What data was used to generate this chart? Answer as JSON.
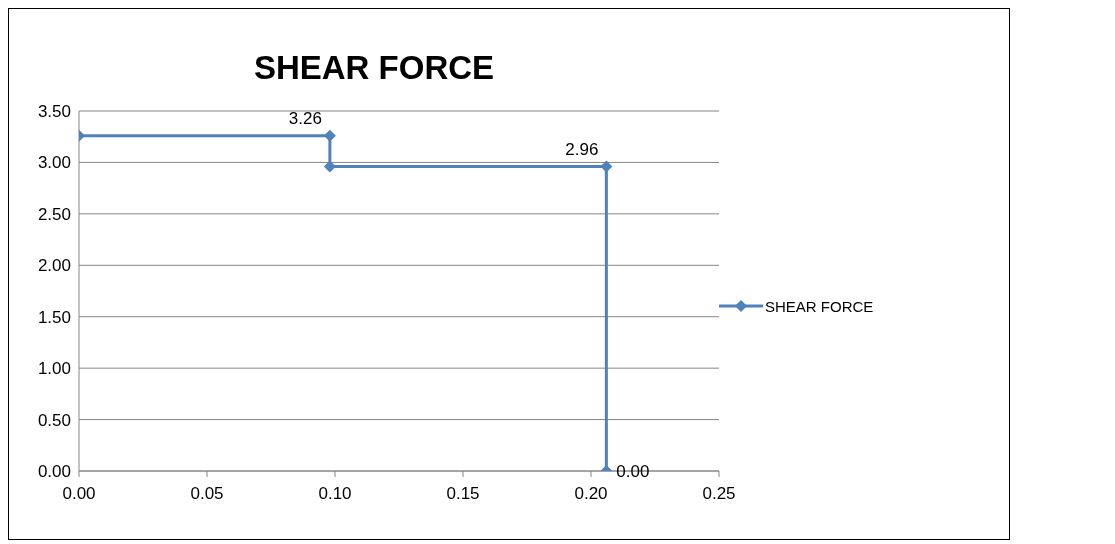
{
  "chart_data": {
    "type": "line",
    "title": "SHEAR FORCE",
    "x": [
      0,
      0.098,
      0.098,
      0.206,
      0.206
    ],
    "series": [
      {
        "name": "SHEAR FORCE",
        "color": "#4f81bd",
        "values": [
          3.26,
          3.26,
          2.96,
          2.96,
          0
        ],
        "value_labels": [
          null,
          "3.26",
          null,
          "2.96",
          "0.00"
        ]
      }
    ],
    "xlim": [
      0,
      0.25
    ],
    "xticks": [
      {
        "value": 0,
        "label": "0.00"
      },
      {
        "value": 0.05,
        "label": "0.05"
      },
      {
        "value": 0.1,
        "label": "0.10"
      },
      {
        "value": 0.15,
        "label": "0.15"
      },
      {
        "value": 0.2,
        "label": "0.20"
      },
      {
        "value": 0.25,
        "label": "0.25"
      }
    ],
    "ylim": [
      0,
      3.5
    ],
    "yticks": [
      {
        "value": 0,
        "label": "0.00"
      },
      {
        "value": 0.5,
        "label": "0.50"
      },
      {
        "value": 1,
        "label": "1.00"
      },
      {
        "value": 1.5,
        "label": "1.50"
      },
      {
        "value": 2,
        "label": "2.00"
      },
      {
        "value": 2.5,
        "label": "2.50"
      },
      {
        "value": 3,
        "label": "3.00"
      },
      {
        "value": 3.5,
        "label": "3.50"
      }
    ],
    "grid": "y",
    "legend": "right",
    "marker": "diamond",
    "line_style": "solid"
  }
}
